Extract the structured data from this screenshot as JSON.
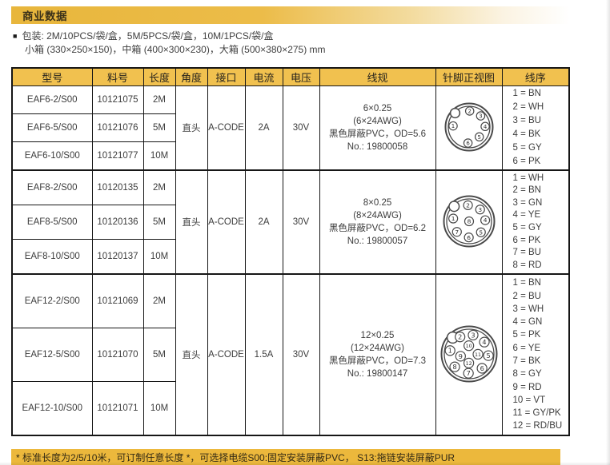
{
  "page": {
    "title": "商业数据",
    "packaging": {
      "bullet": "■",
      "line1": "包装: 2M/10PCS/袋/盒，5M/5PCS/袋/盒，10M/1PCS/袋/盒",
      "line2": "小箱 (330×250×150)，中箱 (400×300×230)，大箱 (500×380×275) mm"
    },
    "footer_note": "* 标准长度为2/5/10米，可订制任意长度 *，可选择电缆S00:固定安装屏蔽PVC， S13:拖链安装屏蔽PUR"
  },
  "colors": {
    "gold_bar": "#E8B63C",
    "gold_header": "#F1C14F",
    "gold_footer": "#ECB83C",
    "border": "#161616",
    "text": "#3c3c3c"
  },
  "table": {
    "headers": [
      "型号",
      "料号",
      "长度",
      "角度",
      "接口",
      "电流",
      "电压",
      "线规",
      "针脚正视图",
      "线序"
    ],
    "groups": [
      {
        "rows": [
          {
            "model": "EAF6-2/S00",
            "part": "10121075",
            "length": "2M"
          },
          {
            "model": "EAF6-5/S00",
            "part": "10121076",
            "length": "5M"
          },
          {
            "model": "EAF6-10/S00",
            "part": "10121077",
            "length": "10M"
          }
        ],
        "angle": "直头",
        "interface": "A-CODE",
        "current": "2A",
        "voltage": "30V",
        "wire_spec": [
          "6×0.25",
          "(6×24AWG)",
          "黑色屏蔽PVC，OD=5.6",
          "No.: 19800058"
        ],
        "pin_diagram": {
          "name": "6-pin-connector-front-view",
          "size": 64,
          "notch_angle": 135,
          "pins": [
            {
              "n": 1,
              "angle": 176,
              "r": 0.68
            },
            {
              "n": 2,
              "angle": 88,
              "r": 0.68
            },
            {
              "n": 3,
              "angle": 44,
              "r": 0.68
            },
            {
              "n": 4,
              "angle": 2,
              "r": 0.68
            },
            {
              "n": 5,
              "angle": 316,
              "r": 0.6
            },
            {
              "n": 6,
              "angle": 266,
              "r": 0.68
            }
          ]
        },
        "wire_seq": [
          "1 = BN",
          "2 = WH",
          "3 = BU",
          "4 = BK",
          "5 = GY",
          "6 = PK"
        ]
      },
      {
        "rows": [
          {
            "model": "EAF8-2/S00",
            "part": "10120135",
            "length": "2M"
          },
          {
            "model": "EAF8-5/S00",
            "part": "10120136",
            "length": "5M"
          },
          {
            "model": "EAF8-10/S00",
            "part": "10120137",
            "length": "10M"
          }
        ],
        "angle": "直头",
        "interface": "A-CODE",
        "current": "2A",
        "voltage": "30V",
        "wire_spec": [
          "8×0.25",
          "(8×24AWG)",
          "黑色屏蔽PVC，OD=6.2",
          "No.: 19800057"
        ],
        "pin_diagram": {
          "name": "8-pin-connector-front-view",
          "size": 68,
          "notch_angle": 135,
          "pins": [
            {
              "n": 1,
              "angle": 170,
              "r": 0.64
            },
            {
              "n": 2,
              "angle": 94,
              "r": 0.64
            },
            {
              "n": 3,
              "angle": 47,
              "r": 0.64
            },
            {
              "n": 4,
              "angle": 4,
              "r": 0.64
            },
            {
              "n": 5,
              "angle": 317,
              "r": 0.64
            },
            {
              "n": 6,
              "angle": 269,
              "r": 0.64
            },
            {
              "n": 7,
              "angle": 221,
              "r": 0.64
            },
            {
              "n": 8,
              "angle": 0,
              "r": 0
            }
          ]
        },
        "wire_seq": [
          "1 = WH",
          "2 = BN",
          "3 = GN",
          "4 = YE",
          "5 = GY",
          "6 = PK",
          "7 = BU",
          "8 = RD"
        ]
      },
      {
        "rows": [
          {
            "model": "EAF12-2/S00",
            "part": "10121069",
            "length": "2M"
          },
          {
            "model": "EAF12-5/S00",
            "part": "10121070",
            "length": "5M"
          },
          {
            "model": "EAF12-10/S00",
            "part": "10121071",
            "length": "10M"
          }
        ],
        "angle": "直头",
        "interface": "A-CODE",
        "current": "1.5A",
        "voltage": "30V",
        "wire_spec": [
          "12×0.25",
          "(12×24AWG)",
          "黑色屏蔽PVC，OD=7.3",
          "No.: 19800147"
        ],
        "pin_diagram": {
          "name": "12-pin-connector-front-view",
          "size": 74,
          "notch_angle": 135,
          "pins": [
            {
              "n": 1,
              "angle": 170,
              "r": 0.7
            },
            {
              "n": 2,
              "angle": 118,
              "r": 0.7
            },
            {
              "n": 3,
              "angle": 78,
              "r": 0.7
            },
            {
              "n": 4,
              "angle": 38,
              "r": 0.7
            },
            {
              "n": 5,
              "angle": 355,
              "r": 0.7
            },
            {
              "n": 6,
              "angle": 312,
              "r": 0.7
            },
            {
              "n": 7,
              "angle": 268,
              "r": 0.7
            },
            {
              "n": 8,
              "angle": 222,
              "r": 0.7
            },
            {
              "n": 9,
              "angle": 195,
              "r": 0.32
            },
            {
              "n": 10,
              "angle": 92,
              "r": 0.3
            },
            {
              "n": 11,
              "angle": 358,
              "r": 0.32
            },
            {
              "n": 12,
              "angle": 268,
              "r": 0.33
            }
          ]
        },
        "wire_seq": [
          "1 = BN",
          "2 = BU",
          "3 = WH",
          "4 = GN",
          "5 = PK",
          "6 = YE",
          "7 = BK",
          "8 = GY",
          "9 = RD",
          "10 = VT",
          "11 = GY/PK",
          "12 = RD/BU"
        ]
      }
    ]
  }
}
